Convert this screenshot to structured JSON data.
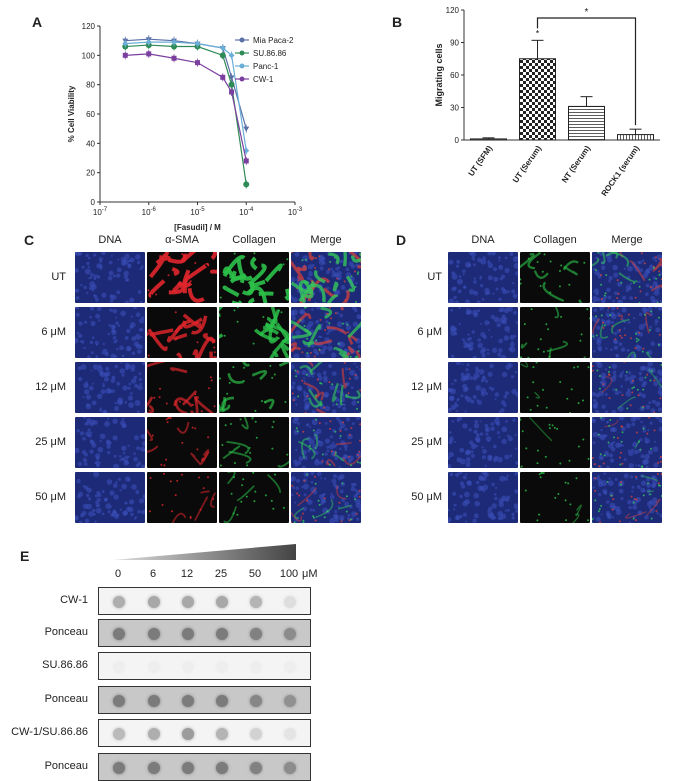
{
  "panels": {
    "A": "A",
    "B": "B",
    "C": "C",
    "D": "D",
    "E": "E"
  },
  "chart_a": {
    "type": "line",
    "ylabel": "% Cell Viability",
    "xlabel": "[Fasudil] / M",
    "yticks": [
      "0",
      "20",
      "40",
      "60",
      "80",
      "100",
      "120"
    ],
    "xticks": [
      "10^-7",
      "10^-6",
      "10^-5",
      "10^-4",
      "10^-3"
    ],
    "xtick_base": [
      "10",
      "10",
      "10",
      "10",
      "10"
    ],
    "xtick_exp": [
      "-7",
      "-6",
      "-5",
      "-4",
      "-3"
    ],
    "legend": [
      "Mia Paca-2",
      "SU.86.86",
      "Panc-1",
      "CW-1"
    ],
    "colors": [
      "#5b6ea8",
      "#2e8b57",
      "#6baed6",
      "#7b3fa0"
    ]
  },
  "chart_data": [
    {
      "type": "line",
      "xlabel": "[Fasudil] / M",
      "ylabel": "% Cell Viability",
      "x_scale": "log",
      "xlim": [
        1e-07,
        0.001
      ],
      "ylim": [
        0,
        120
      ],
      "x": [
        3.3e-07,
        1e-06,
        3.3e-06,
        1e-05,
        3.3e-05,
        5e-05,
        0.0001
      ],
      "series": [
        {
          "name": "Mia Paca-2",
          "values": [
            110,
            111,
            110,
            108,
            105,
            85,
            50
          ]
        },
        {
          "name": "SU.86.86",
          "values": [
            106,
            107,
            106,
            106,
            100,
            80,
            12
          ]
        },
        {
          "name": "Panc-1",
          "values": [
            108,
            109,
            109,
            108,
            105,
            100,
            35
          ]
        },
        {
          "name": "CW-1",
          "values": [
            100,
            101,
            98,
            95,
            85,
            75,
            28
          ]
        }
      ]
    },
    {
      "type": "bar",
      "ylabel": "Migrating cells",
      "categories": [
        "UT (SFM)",
        "UT (Serum)",
        "NT (Serum)",
        "ROCK1 (serum)"
      ],
      "values": [
        1,
        75,
        31,
        5
      ],
      "errors": [
        1,
        17,
        9,
        5
      ],
      "ylim": [
        0,
        120
      ],
      "yticks": [
        "0",
        "30",
        "60",
        "90",
        "120"
      ],
      "annotations": [
        "*",
        "*"
      ]
    }
  ],
  "panel_c": {
    "headers": [
      "DNA",
      "α-SMA",
      "Collagen",
      "Merge"
    ],
    "rows": [
      "UT",
      "6 μM",
      "12 μM",
      "25 μM",
      "50 μM"
    ]
  },
  "panel_d": {
    "headers": [
      "DNA",
      "Collagen",
      "Merge"
    ],
    "rows": [
      "UT",
      "6 μM",
      "12 μM",
      "25 μM",
      "50 μM"
    ]
  },
  "panel_e": {
    "doses": [
      "0",
      "6",
      "12",
      "25",
      "50",
      "100"
    ],
    "unit": "μM",
    "rows": [
      "CW-1",
      "Ponceau",
      "SU.86.86",
      "Ponceau",
      "CW-1/SU.86.86",
      "Ponceau"
    ],
    "intensities": [
      [
        0.55,
        0.6,
        0.6,
        0.6,
        0.5,
        0.15
      ],
      [
        0.7,
        0.7,
        0.7,
        0.7,
        0.65,
        0.55
      ],
      [
        0.02,
        0.02,
        0.02,
        0.02,
        0.02,
        0.02
      ],
      [
        0.7,
        0.7,
        0.7,
        0.7,
        0.6,
        0.5
      ],
      [
        0.45,
        0.55,
        0.7,
        0.5,
        0.25,
        0.1
      ],
      [
        0.7,
        0.7,
        0.7,
        0.7,
        0.65,
        0.55
      ]
    ]
  }
}
